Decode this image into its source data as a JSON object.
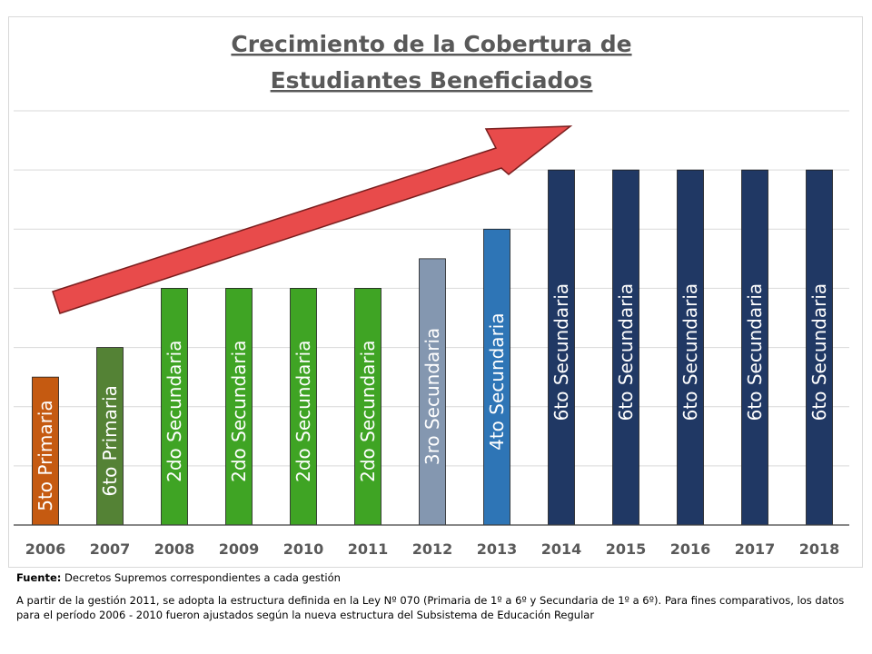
{
  "chart_data": {
    "type": "bar",
    "title_line1": "Crecimiento de la Cobertura de",
    "title_line2": "Estudiantes  Beneficiados",
    "categories": [
      "2006",
      "2007",
      "2008",
      "2009",
      "2010",
      "2011",
      "2012",
      "2013",
      "2014",
      "2015",
      "2016",
      "2017",
      "2018"
    ],
    "values": [
      5,
      6,
      8,
      8,
      8,
      8,
      9,
      10,
      12,
      12,
      12,
      12,
      12
    ],
    "bar_labels": [
      "5to Primaria",
      "6to Primaria",
      "2do Secundaria",
      "2do Secundaria",
      "2do Secundaria",
      "2do Secundaria",
      "3ro Secundaria",
      "4to Secundaria",
      "6to Secundaria",
      "6to Secundaria",
      "6to Secundaria",
      "6to Secundaria",
      "6to Secundaria"
    ],
    "bar_colors": [
      "#c55a11",
      "#548235",
      "#3fa424",
      "#3fa424",
      "#3fa424",
      "#3fa424",
      "#8497b0",
      "#2e75b6",
      "#203864",
      "#203864",
      "#203864",
      "#203864",
      "#203864"
    ],
    "ylim": [
      0,
      14
    ],
    "grid": true,
    "trend_arrow_color": "#e84b4b"
  },
  "footer": {
    "source_label": "Fuente:",
    "source_text": " Decretos Supremos correspondientes a cada gestión",
    "note": "A partir de la gestión 2011, se adopta la estructura definida en la Ley Nº 070 (Primaria de 1º a 6º y Secundaria de 1º a 6º). Para fines comparativos, los datos para el período 2006 - 2010 fueron ajustados según la nueva estructura del Subsistema de Educación Regular"
  }
}
